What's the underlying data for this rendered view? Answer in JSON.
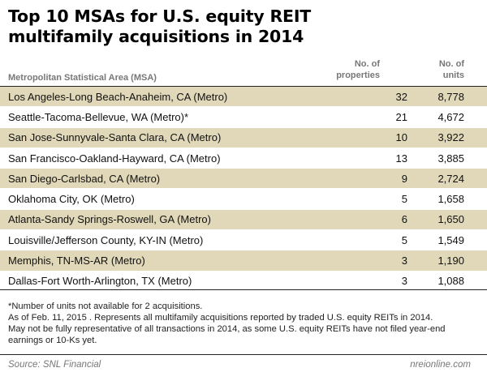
{
  "title": "Top 10 MSAs for U.S. equity REIT multifamily acquisitions in 2014",
  "header": {
    "msa": "Metropolitan Statistical Area (MSA)",
    "properties_line1": "No. of",
    "properties_line2": "properties",
    "units_line1": "No. of",
    "units_line2": "units"
  },
  "rows": [
    {
      "msa": "Los Angeles-Long Beach-Anaheim, CA (Metro)",
      "properties": "32",
      "units": "8,778"
    },
    {
      "msa": "Seattle-Tacoma-Bellevue, WA (Metro)*",
      "properties": "21",
      "units": "4,672"
    },
    {
      "msa": "San Jose-Sunnyvale-Santa Clara, CA (Metro)",
      "properties": "10",
      "units": "3,922"
    },
    {
      "msa": "San Francisco-Oakland-Hayward, CA (Metro)",
      "properties": "13",
      "units": "3,885"
    },
    {
      "msa": "San Diego-Carlsbad, CA (Metro)",
      "properties": "9",
      "units": "2,724"
    },
    {
      "msa": "Oklahoma City, OK (Metro)",
      "properties": "5",
      "units": "1,658"
    },
    {
      "msa": "Atlanta-Sandy Springs-Roswell, GA (Metro)",
      "properties": "6",
      "units": "1,650"
    },
    {
      "msa": "Louisville/Jefferson County, KY-IN (Metro)",
      "properties": "5",
      "units": "1,549"
    },
    {
      "msa": "Memphis, TN-MS-AR (Metro)",
      "properties": "3",
      "units": "1,190"
    },
    {
      "msa": "Dallas-Fort Worth-Arlington, TX (Metro)",
      "properties": "3",
      "units": "1,088"
    }
  ],
  "notes": {
    "line1": "*Number of units not available for 2 acquisitions.",
    "line2": "As of Feb. 11, 2015 . Represents all multifamily acquisitions reported by traded U.S. equity REITs in 2014.",
    "line3": "May not be fully representative of all transactions in 2014, as some U.S. equity REITs have not filed year-end",
    "line4": "earnings or 10-Ks yet."
  },
  "footer": {
    "source": "Source: SNL Financial",
    "site": "nreionline.com"
  },
  "colors": {
    "shaded_row": "#e0d8b8",
    "rule": "#222222",
    "header_text": "#777777"
  }
}
